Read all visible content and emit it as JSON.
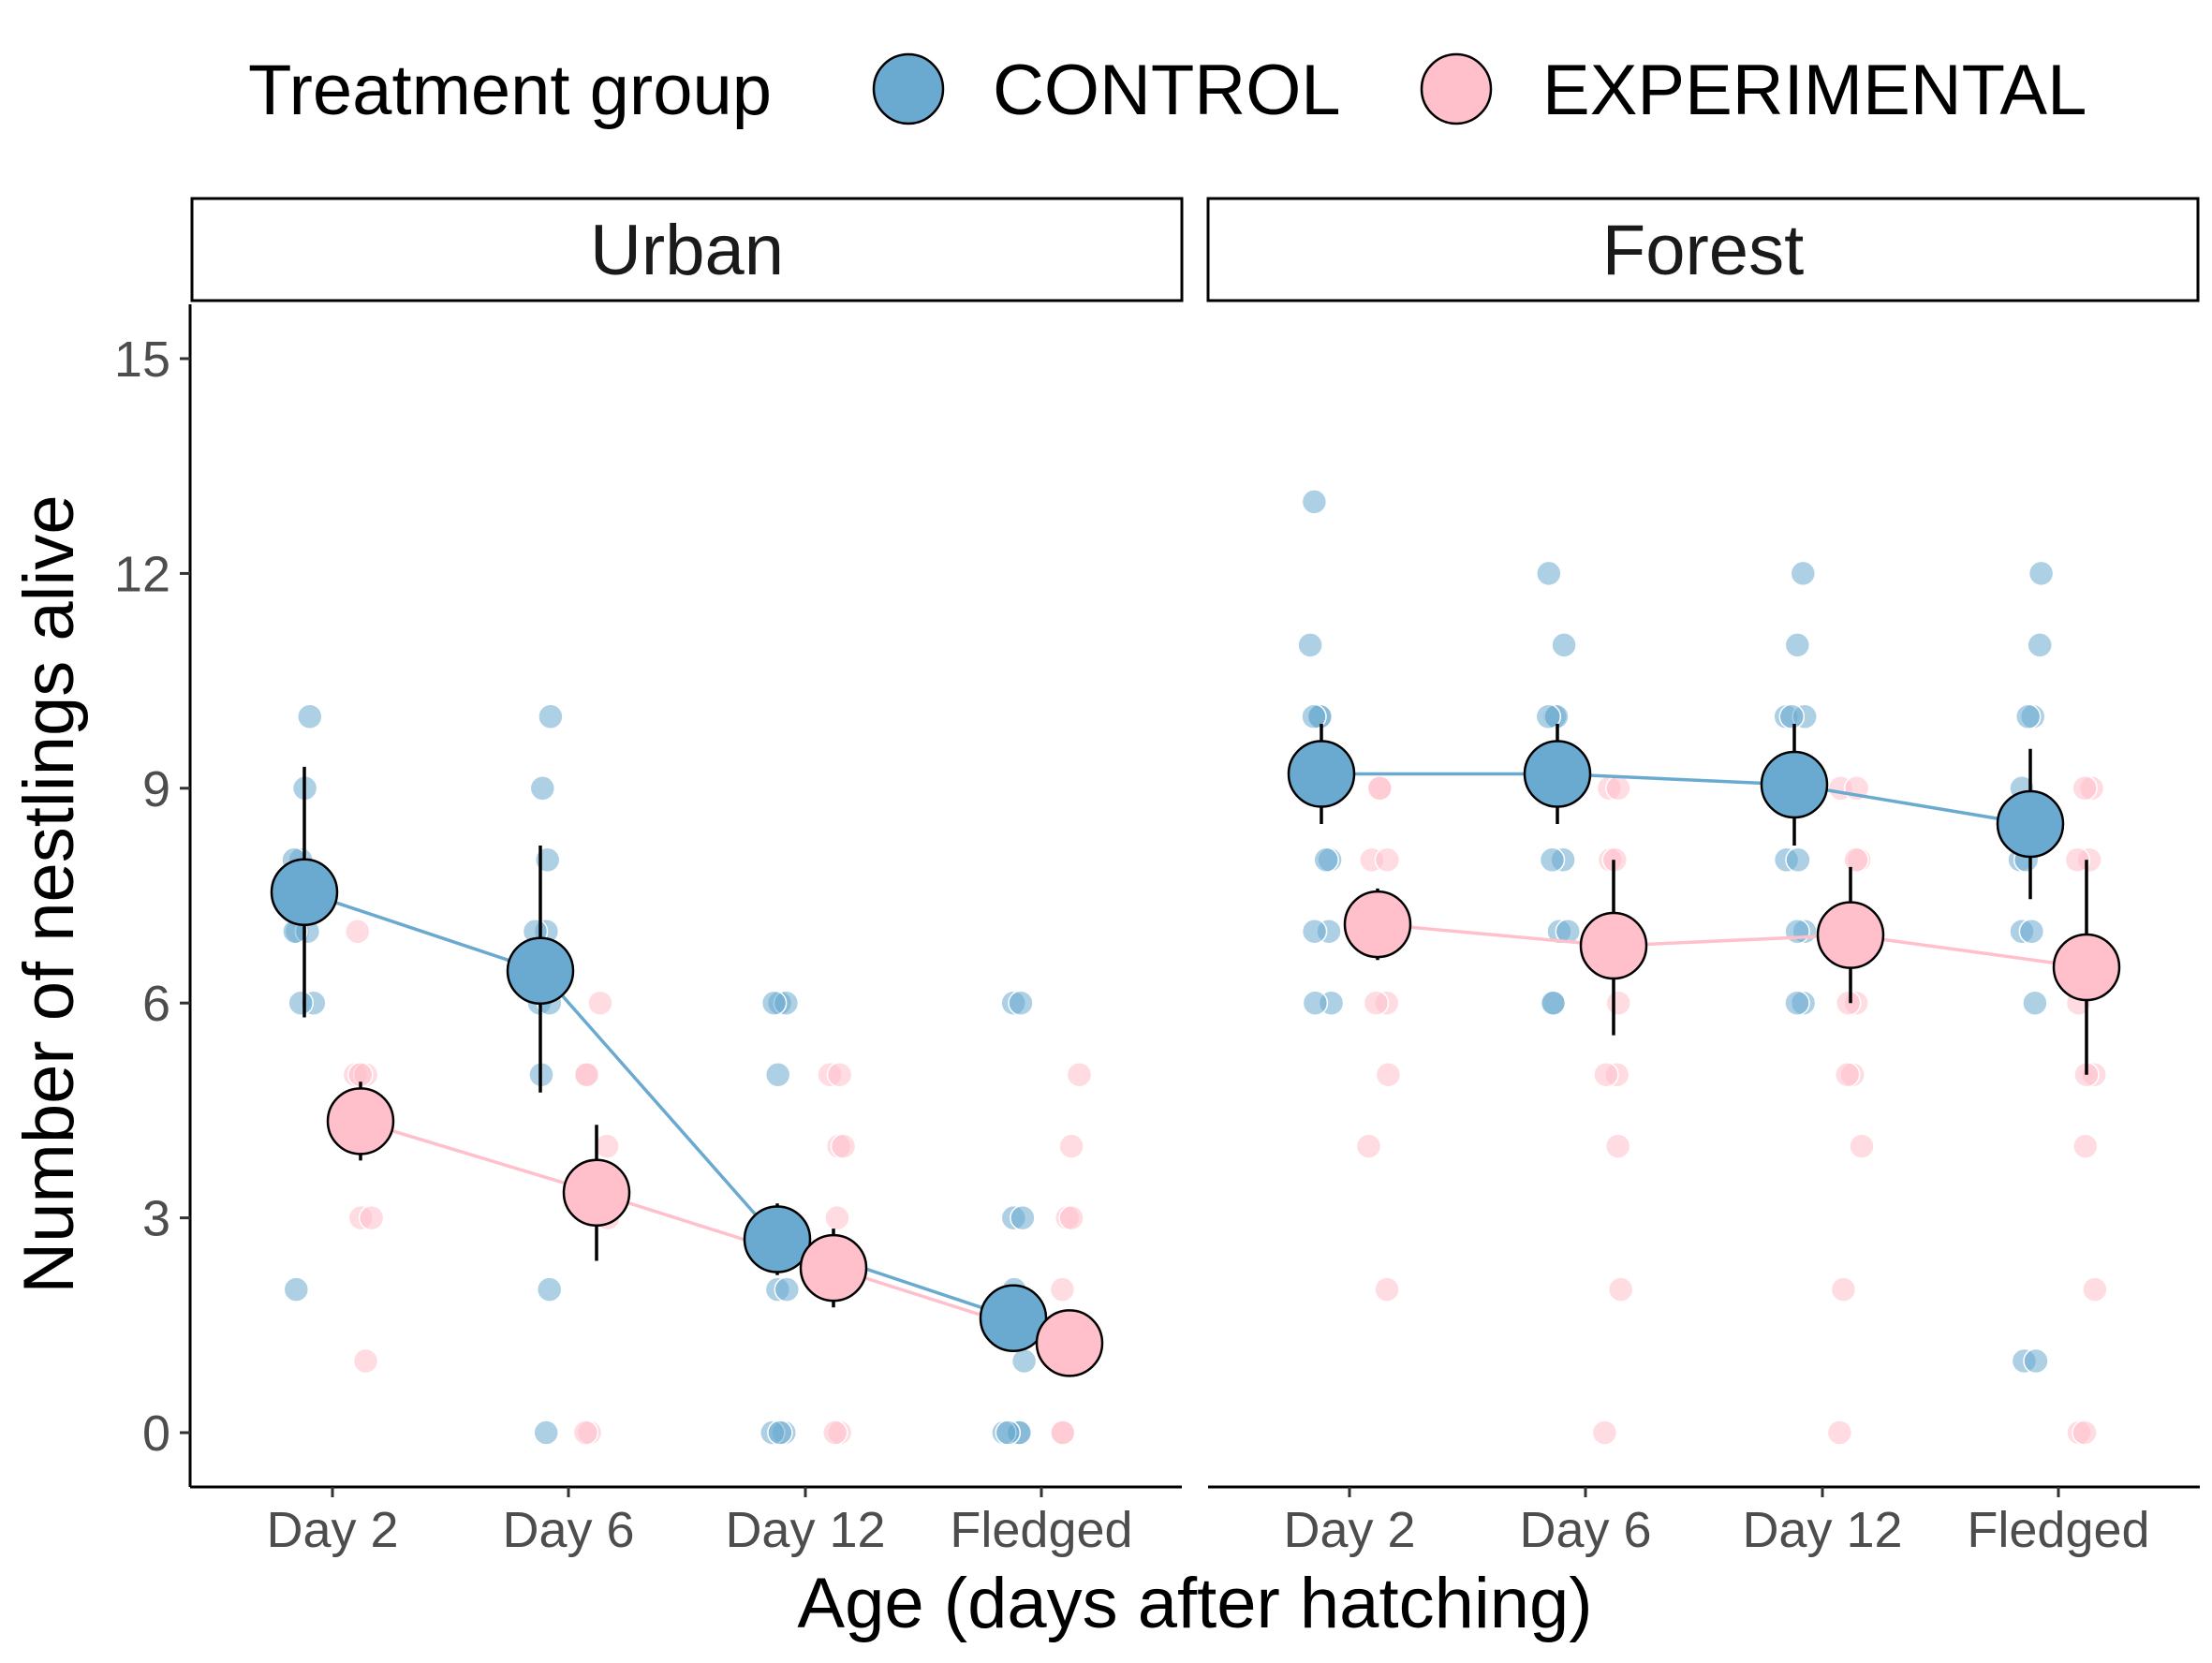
{
  "colors": {
    "CONTROL": "#6aaad0",
    "EXPERIMENTAL": "#ffc0cb",
    "axis": "#000000",
    "error_bar": "#000000"
  },
  "chart_data": {
    "type": "scatter",
    "legend": {
      "title": "Treatment group",
      "position": "top",
      "entries": [
        "CONTROL",
        "EXPERIMENTAL"
      ]
    },
    "facets": [
      "Urban",
      "Forest"
    ],
    "categories": [
      "Day 2",
      "Day 6",
      "Day 12",
      "Fledged"
    ],
    "xlabel": "Age (days after hatching)",
    "ylabel": "Number of nestlings alive",
    "yticks": [
      "0",
      "3",
      "6",
      "9",
      "12",
      "15"
    ],
    "ylim": [
      -0.7,
      15.9
    ],
    "grid": false,
    "summary": [
      {
        "facet": "Urban",
        "series": [
          {
            "name": "CONTROL",
            "mean": [
              7.55,
              6.45,
              2.7,
              1.6
            ],
            "lower": [
              5.8,
              4.75,
              2.2,
              1.4
            ],
            "upper": [
              9.3,
              8.2,
              3.2,
              1.8
            ]
          },
          {
            "name": "EXPERIMENTAL",
            "mean": [
              4.35,
              3.35,
              2.3,
              1.25
            ],
            "lower": [
              3.8,
              2.4,
              1.75,
              1.0
            ],
            "upper": [
              4.9,
              4.3,
              2.85,
              1.5
            ]
          }
        ]
      },
      {
        "facet": "Forest",
        "series": [
          {
            "name": "CONTROL",
            "mean": [
              9.2,
              9.2,
              9.05,
              8.5
            ],
            "lower": [
              8.5,
              8.5,
              8.2,
              7.45
            ],
            "upper": [
              9.9,
              9.9,
              9.9,
              9.55
            ]
          },
          {
            "name": "EXPERIMENTAL",
            "mean": [
              7.1,
              6.8,
              6.95,
              6.5
            ],
            "lower": [
              6.6,
              5.55,
              6.0,
              5.0
            ],
            "upper": [
              7.6,
              8.0,
              7.9,
              8.0
            ]
          }
        ]
      }
    ],
    "raw_points": [
      {
        "facet": "Urban",
        "series": "CONTROL",
        "category": "Day 2",
        "values": [
          10,
          9,
          8,
          8,
          7,
          7,
          7,
          6,
          6,
          2
        ]
      },
      {
        "facet": "Urban",
        "series": "EXPERIMENTAL",
        "category": "Day 2",
        "values": [
          7,
          5,
          5,
          5,
          3,
          3,
          1
        ]
      },
      {
        "facet": "Urban",
        "series": "CONTROL",
        "category": "Day 6",
        "values": [
          10,
          9,
          8,
          7,
          7,
          6,
          6,
          5,
          2,
          0
        ]
      },
      {
        "facet": "Urban",
        "series": "EXPERIMENTAL",
        "category": "Day 6",
        "values": [
          6,
          5,
          5,
          4,
          3,
          0,
          0
        ]
      },
      {
        "facet": "Urban",
        "series": "CONTROL",
        "category": "Day 12",
        "values": [
          6,
          6,
          6,
          5,
          3,
          2,
          2,
          0,
          0,
          0
        ]
      },
      {
        "facet": "Urban",
        "series": "EXPERIMENTAL",
        "category": "Day 12",
        "values": [
          5,
          5,
          4,
          4,
          3,
          0,
          0
        ]
      },
      {
        "facet": "Urban",
        "series": "CONTROL",
        "category": "Fledged",
        "values": [
          6,
          6,
          3,
          3,
          2,
          1,
          0,
          0,
          0,
          0
        ]
      },
      {
        "facet": "Urban",
        "series": "EXPERIMENTAL",
        "category": "Fledged",
        "values": [
          5,
          4,
          3,
          3,
          2,
          0,
          0
        ]
      },
      {
        "facet": "Forest",
        "series": "CONTROL",
        "category": "Day 2",
        "values": [
          13,
          11,
          10,
          10,
          10,
          9,
          8,
          8,
          7,
          7,
          6,
          6
        ]
      },
      {
        "facet": "Forest",
        "series": "EXPERIMENTAL",
        "category": "Day 2",
        "values": [
          9,
          9,
          8,
          8,
          7,
          6,
          6,
          5,
          4,
          2
        ]
      },
      {
        "facet": "Forest",
        "series": "CONTROL",
        "category": "Day 6",
        "values": [
          12,
          11,
          10,
          10,
          10,
          9,
          8,
          8,
          7,
          7,
          6,
          6
        ]
      },
      {
        "facet": "Forest",
        "series": "EXPERIMENTAL",
        "category": "Day 6",
        "values": [
          9,
          9,
          8,
          8,
          7,
          6,
          5,
          5,
          4,
          2,
          0
        ]
      },
      {
        "facet": "Forest",
        "series": "CONTROL",
        "category": "Day 12",
        "values": [
          12,
          11,
          10,
          10,
          10,
          9,
          8,
          8,
          7,
          7,
          6,
          6
        ]
      },
      {
        "facet": "Forest",
        "series": "EXPERIMENTAL",
        "category": "Day 12",
        "values": [
          9,
          9,
          8,
          8,
          7,
          6,
          6,
          5,
          5,
          4,
          2,
          0
        ]
      },
      {
        "facet": "Forest",
        "series": "CONTROL",
        "category": "Fledged",
        "values": [
          12,
          11,
          10,
          10,
          9,
          8,
          8,
          7,
          7,
          6,
          1,
          1
        ]
      },
      {
        "facet": "Forest",
        "series": "EXPERIMENTAL",
        "category": "Fledged",
        "values": [
          9,
          9,
          8,
          8,
          6,
          5,
          5,
          4,
          2,
          0,
          0
        ]
      }
    ]
  }
}
